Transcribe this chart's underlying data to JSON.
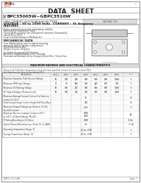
{
  "bg_color": "#ffffff",
  "title": "DATA  SHEET",
  "part_number_prefix": "G",
  "part_number_rest": "BPC35005W~GBPC3510W",
  "subtitle1": "HIGH-CURRENT SILICON BRIDGE RECTIFIER",
  "subtitle2": "VOLTAGE : 50 to 1000 Volts  CURRENT : 35 Amperes",
  "features_title": "FEATURES",
  "features": [
    "Plastic construction provides outstanding reliability",
    "Flammability Classification 94V-0",
    "Thermoplastic package has Underwriters Laboratory Flammability",
    "Classification 94V-0",
    "Surge overload ratings to 200 Amperes"
  ],
  "mech_title": "MECHANICAL DATA",
  "mech": [
    "Case: Molded plastic with 4 isolated mounting",
    "mounting holes for bridge configurations",
    "Mounting position: Any",
    "Weight: 1 ounce, 30 grams",
    "",
    "UL: Safety Recognized 94V-0 bodies",
    "All RoHS Compliant/Halogen Free Terminals",
    "Terminals are Available on the Integral 4 Short Wire / Screw Case"
  ],
  "table_title": "MAXIMUM RATINGS AND ELECTRICAL CHARACTERISTICS",
  "table_note1": "Rating at 25°C Ambient temperature unless otherwise specified. Consult to instruction sheet (HLK).",
  "table_note2": "For Capacitive input circuit (considering 85%)",
  "col_headers": [
    "GBPC\n35005W",
    "GBPC\n3501W",
    "GBPC\n3502W",
    "GBPC\n3504W",
    "GBPC\n3506W",
    "GBPC\n3508W",
    "GBPC\n3510W",
    "UNIT"
  ],
  "rows": [
    {
      "label": "Maximum Repetitive Peak Reverse Voltage",
      "values": [
        "50",
        "100",
        "200",
        "400",
        "600",
        "800",
        "1000"
      ],
      "unit": "V"
    },
    {
      "label": "Maximum RMS Input Voltage",
      "values": [
        "35",
        "70",
        "140",
        "280",
        "420",
        "560",
        "700"
      ],
      "unit": "V"
    },
    {
      "label": "Maximum DC Working Voltage",
      "values": [
        "50",
        "100",
        "200",
        "400",
        "600",
        "800",
        "1000"
      ],
      "unit": "V"
    },
    {
      "label": "DC Output Voltage, Minimum-Load",
      "values": [
        "50",
        "100",
        "200",
        "400",
        "600",
        "800",
        "1000"
      ],
      "unit": "V"
    },
    {
      "label": "Maximum Average Forward Current For Resistive\nLoad at Tc=55°C",
      "values": [
        "",
        "",
        "",
        "35",
        "",
        "",
        ""
      ],
      "unit": "A"
    },
    {
      "label": "Peak Forward Surge Current Single Half Sine-Wave",
      "values": [
        "",
        "",
        "",
        "200",
        "",
        "",
        ""
      ],
      "unit": "A"
    },
    {
      "label": "Maximum Forward Voltage per Diode at 17.5 A,\nRectified Current",
      "values": [
        "",
        "",
        "",
        "1.10",
        "",
        "",
        ""
      ],
      "unit": "V"
    },
    {
      "label": "Maximum Reverse Leakage Current at 25°C\nat 125°C, at Rated Voltage VR=VDC",
      "values": [
        "",
        "",
        "",
        "1000\n1000",
        "",
        "",
        ""
      ],
      "unit": "μA"
    },
    {
      "label": "IF Rating According to UL Status",
      "values": [
        "",
        "",
        "",
        "1008",
        "",
        "",
        ""
      ],
      "unit": "E No."
    },
    {
      "label": "Typical Thermal Resistance per Diode (TC to CASE)",
      "values": [
        "",
        "",
        "",
        "2.0",
        "",
        "",
        ""
      ],
      "unit": "°C /W"
    },
    {
      "label": "Operating Temperature Range, TJ",
      "values": [
        "",
        "",
        "",
        "-55 to +150",
        "",
        "",
        ""
      ],
      "unit": "°C"
    },
    {
      "label": "Storage Temperature Range, TS",
      "values": [
        "",
        "",
        "",
        "-55 to +150",
        "",
        "",
        ""
      ],
      "unit": "°C"
    }
  ],
  "footer_left": "DATE: 2011-JAR",
  "footer_right": "Page: 1"
}
